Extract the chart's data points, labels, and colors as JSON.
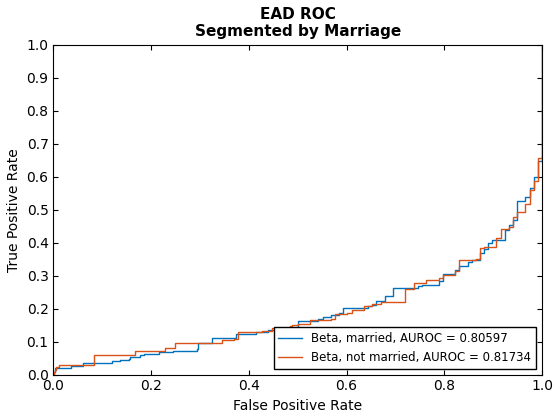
{
  "title_line1": "EAD ROC",
  "title_line2": "Segmented by Marriage",
  "xlabel": "False Positive Rate",
  "ylabel": "True Positive Rate",
  "legend_labels": [
    "Beta, married, AUROC = 0.80597",
    "Beta, not married, AUROC = 0.81734"
  ],
  "line_colors": [
    "#0072BD",
    "#D95319"
  ],
  "xlim": [
    0,
    1
  ],
  "ylim": [
    0,
    1
  ],
  "xticks": [
    0,
    0.2,
    0.4,
    0.6,
    0.8,
    1.0
  ],
  "yticks": [
    0,
    0.1,
    0.2,
    0.3,
    0.4,
    0.5,
    0.6,
    0.7,
    0.8,
    0.9,
    1.0
  ],
  "figsize": [
    5.6,
    4.2
  ],
  "dpi": 100
}
